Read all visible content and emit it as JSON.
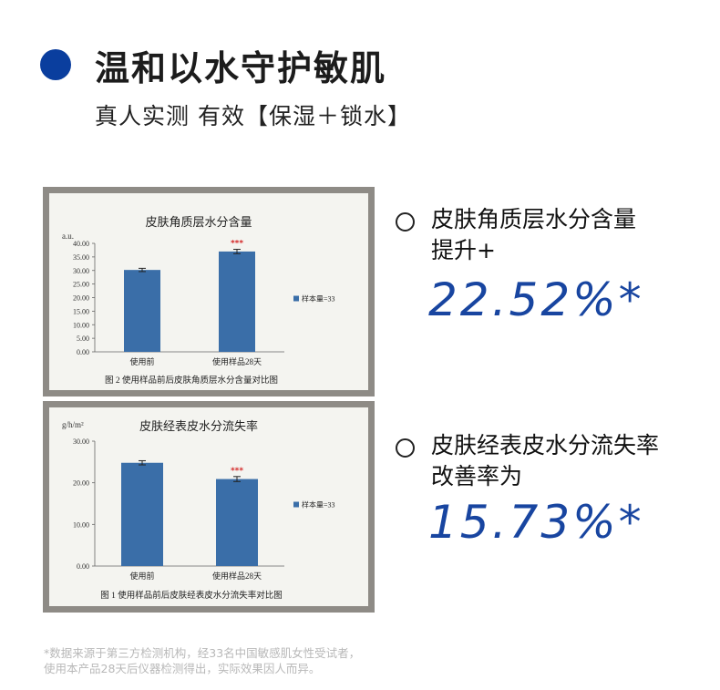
{
  "header": {
    "title": "温和以水守护敏肌",
    "subtitle": "真人实测 有效【保湿＋锁水】"
  },
  "stats": [
    {
      "label_line1": "皮肤角质层水分含量",
      "label_line2": "提升+",
      "value": "22.52%*"
    },
    {
      "label_line1": "皮肤经表皮水分流失率",
      "label_line2": "改善率为",
      "value": "15.73%*"
    }
  ],
  "footnote": {
    "line1": "*数据来源于第三方检测机构，经33名中国敏感肌女性受试者，",
    "line2": "使用本产品28天后仪器检测得出，实际效果因人而异。"
  },
  "colors": {
    "accent_blue": "#0a3e9e",
    "bar_blue": "#3a6ea8",
    "significance_red": "#d42a2a"
  },
  "chart_data": [
    {
      "type": "bar",
      "title": "皮肤角质层水分含量",
      "ylabel": "a.u.",
      "categories": [
        "使用前",
        "使用样品28天"
      ],
      "values": [
        30.2,
        37.0
      ],
      "error": [
        0.6,
        0.8
      ],
      "significance": [
        "",
        "***"
      ],
      "ylim": [
        0,
        40
      ],
      "yticks": [
        "0.00",
        "5.00",
        "10.00",
        "15.00",
        "20.00",
        "25.00",
        "30.00",
        "35.00",
        "40.00"
      ],
      "legend": "样本量=33",
      "legend_position": "right",
      "caption": "图 2 使用样品前后皮肤角质层水分含量对比图"
    },
    {
      "type": "bar",
      "title": "皮肤经表皮水分流失率",
      "ylabel": "g/h/m²",
      "categories": [
        "使用前",
        "使用样品28天"
      ],
      "values": [
        24.8,
        20.9
      ],
      "error": [
        0.5,
        0.6
      ],
      "significance": [
        "",
        "***"
      ],
      "ylim": [
        0,
        30
      ],
      "yticks": [
        "0.00",
        "10.00",
        "20.00",
        "30.00"
      ],
      "legend": "样本量=33",
      "legend_position": "right",
      "caption": "图 1 使用样品前后皮肤经表皮水分流失率对比图"
    }
  ]
}
